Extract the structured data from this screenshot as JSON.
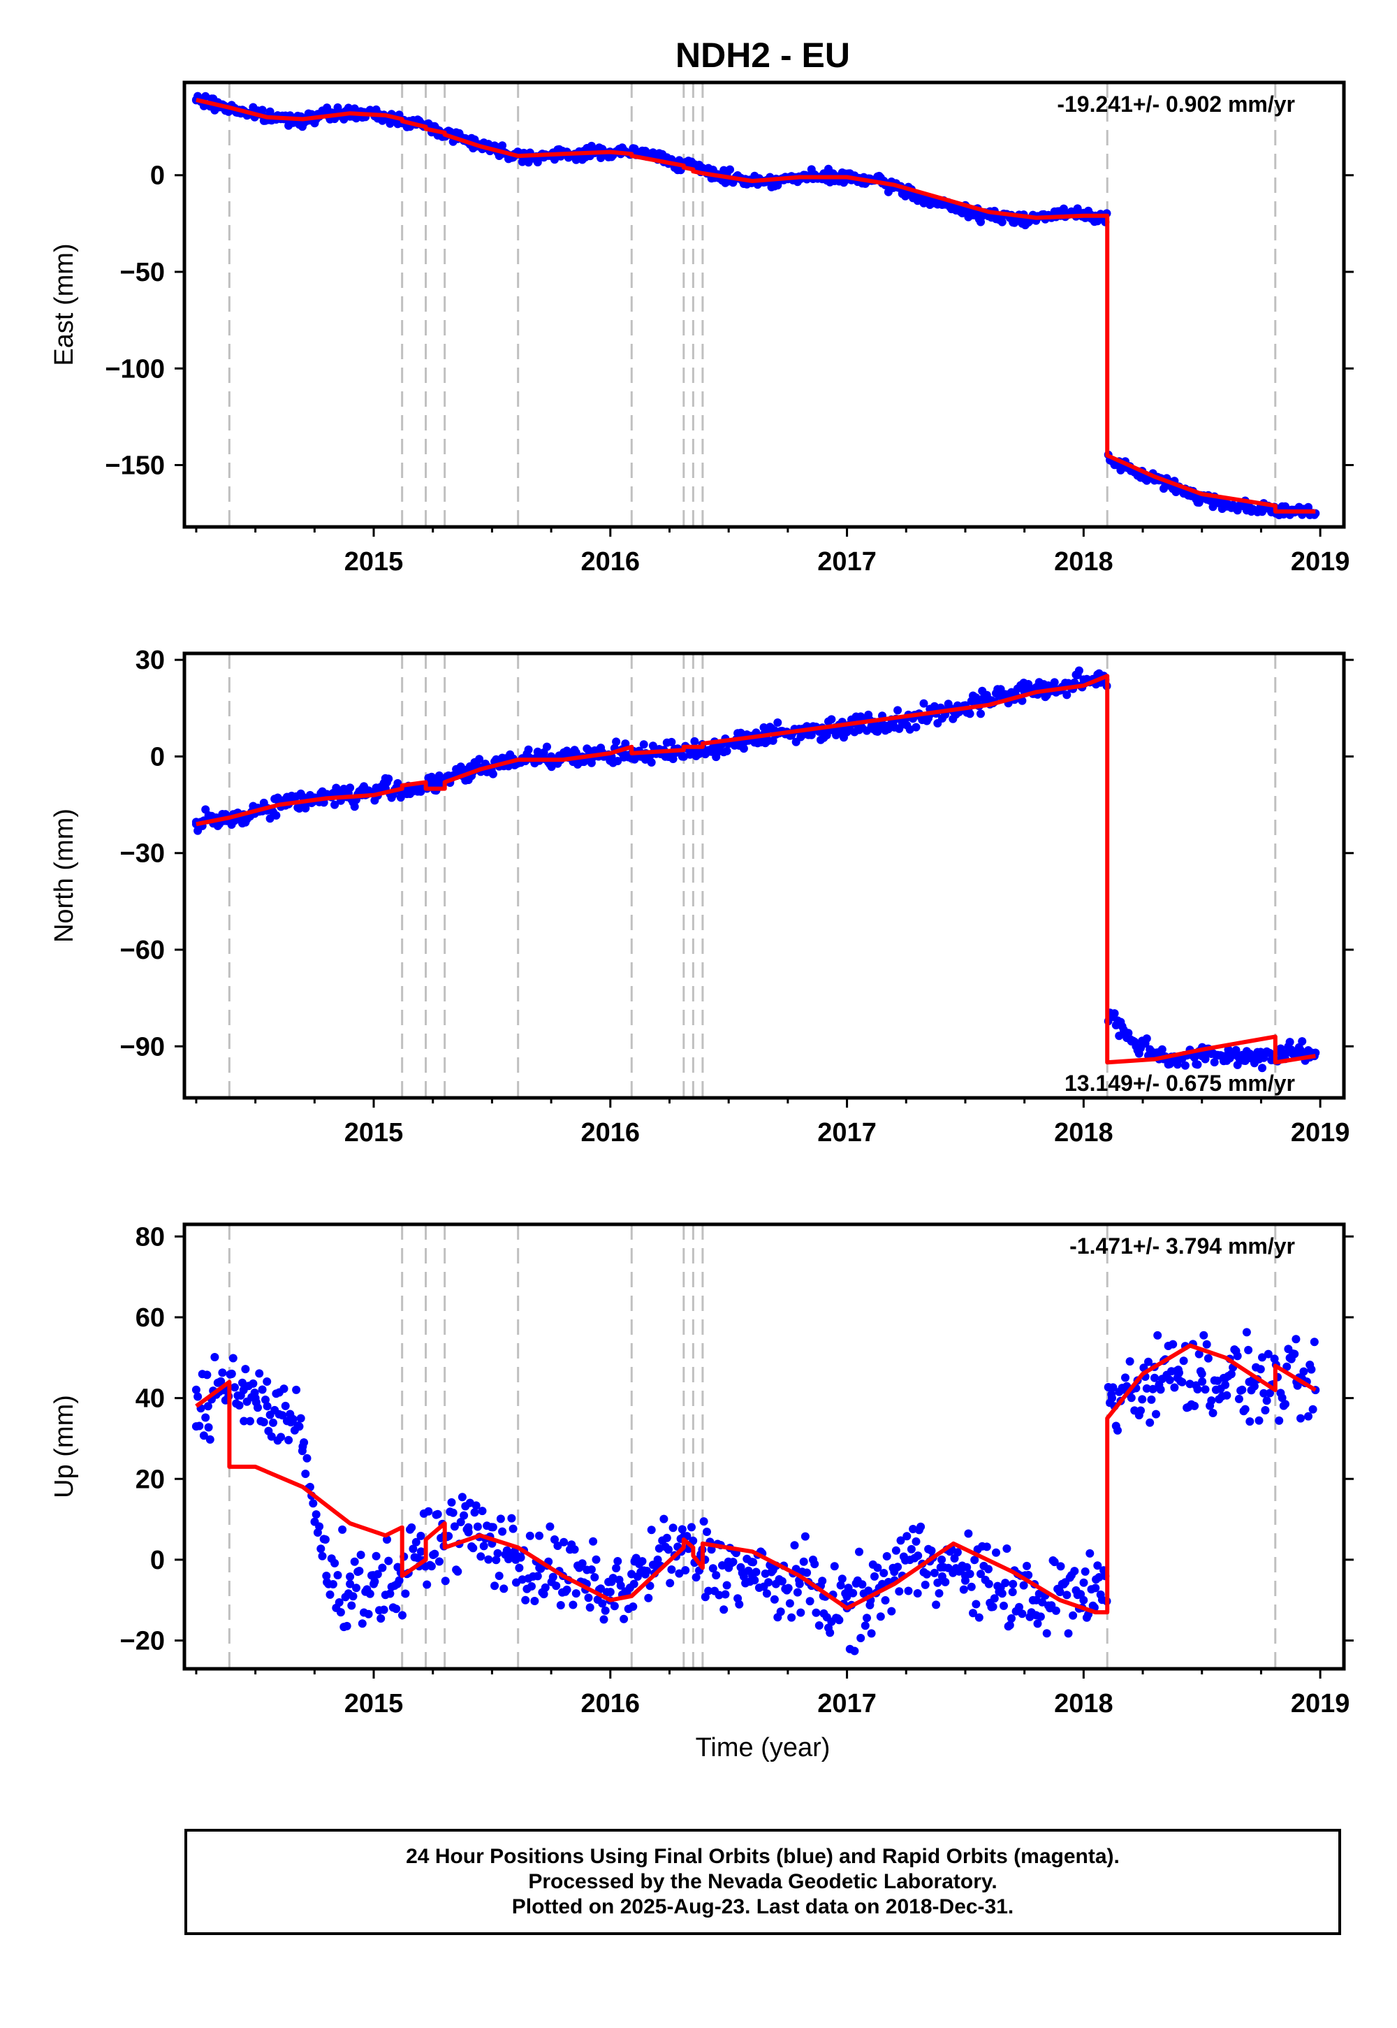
{
  "title": "NDH2 - EU",
  "xlabel": "Time (year)",
  "footer": {
    "line1": "24 Hour Positions Using Final Orbits (blue) and Rapid Orbits (magenta).",
    "line2": "Processed by the Nevada Geodetic Laboratory.",
    "line3": "Plotted on 2025-Aug-23. Last data on 2018-Dec-31."
  },
  "colors": {
    "data": "#0000ff",
    "model": "#ff0000",
    "event_lines": "#c0c0c0"
  },
  "chart_data": [
    {
      "type": "scatter",
      "ylabel": "East (mm)",
      "rate_label": "-19.241+/- 0.902 mm/yr",
      "xlim": [
        2014.2,
        2019.1
      ],
      "ylim": [
        -182,
        48
      ],
      "xticks": [
        2015,
        2016,
        2017,
        2018,
        2019
      ],
      "yticks": [
        0,
        -50,
        -100,
        -150
      ],
      "event_lines": [
        2014.39,
        2015.12,
        2015.22,
        2015.3,
        2015.61,
        2016.09,
        2016.31,
        2016.35,
        2016.39,
        2018.1,
        2018.81
      ],
      "series": [
        {
          "x": [
            2014.25,
            2014.35,
            2014.45,
            2014.55,
            2014.65,
            2014.75,
            2014.85,
            2014.95,
            2015.05,
            2015.15,
            2015.25,
            2015.35,
            2015.45,
            2015.55,
            2015.65,
            2015.75,
            2015.85,
            2015.95,
            2016.05,
            2016.15,
            2016.25,
            2016.35,
            2016.45,
            2016.55,
            2016.65,
            2016.75,
            2016.85,
            2016.95,
            2017.05,
            2017.15,
            2017.25,
            2017.35,
            2017.45,
            2017.55,
            2017.65,
            2017.75,
            2017.85,
            2017.95,
            2018.05,
            2018.12,
            2018.2,
            2018.3,
            2018.4,
            2018.5,
            2018.6,
            2018.7,
            2018.8,
            2018.9,
            2018.98
          ],
          "y": [
            39,
            36,
            33,
            30,
            29,
            30,
            32,
            32,
            30,
            28,
            24,
            20,
            16,
            12,
            10,
            10,
            11,
            12,
            12,
            11,
            8,
            4,
            0,
            -2,
            -3,
            -2,
            -1,
            -1,
            -2,
            -4,
            -8,
            -13,
            -17,
            -20,
            -22,
            -22,
            -21,
            -20,
            -21,
            -148,
            -153,
            -157,
            -162,
            -167,
            -170,
            -172,
            -173,
            -174,
            -175
          ]
        }
      ],
      "model": {
        "x": [
          2014.25,
          2014.39,
          2014.39,
          2014.55,
          2014.7,
          2014.9,
          2015.05,
          2015.12,
          2015.12,
          2015.22,
          2015.22,
          2015.3,
          2015.3,
          2015.45,
          2015.61,
          2015.61,
          2015.8,
          2016.0,
          2016.09,
          2016.09,
          2016.31,
          2016.31,
          2016.35,
          2016.35,
          2016.39,
          2016.39,
          2016.6,
          2016.8,
          2017.0,
          2017.2,
          2017.4,
          2017.6,
          2017.8,
          2018.0,
          2018.1,
          2018.1,
          2018.3,
          2018.5,
          2018.81,
          2018.81,
          2018.98
        ],
        "y": [
          39,
          35,
          35,
          30,
          29,
          32,
          31,
          29,
          28,
          25,
          24,
          22,
          21,
          15,
          10,
          10,
          11,
          12,
          11,
          10,
          5,
          4,
          3,
          2,
          1,
          1,
          -3,
          -1,
          -1,
          -5,
          -12,
          -19,
          -22,
          -21,
          -21,
          -145,
          -156,
          -165,
          -171,
          -174,
          -174
        ]
      }
    },
    {
      "type": "scatter",
      "ylabel": "North (mm)",
      "rate_label": "13.149+/- 0.675 mm/yr",
      "xlim": [
        2014.2,
        2019.1
      ],
      "ylim": [
        -106,
        32
      ],
      "xticks": [
        2015,
        2016,
        2017,
        2018,
        2019
      ],
      "yticks": [
        30,
        0,
        -30,
        -60,
        -90
      ],
      "event_lines": [
        2014.39,
        2015.12,
        2015.22,
        2015.3,
        2015.61,
        2016.09,
        2016.31,
        2016.35,
        2016.39,
        2018.1,
        2018.81
      ],
      "series": [
        {
          "x": [
            2014.25,
            2014.35,
            2014.45,
            2014.55,
            2014.65,
            2014.75,
            2014.85,
            2014.95,
            2015.05,
            2015.15,
            2015.25,
            2015.35,
            2015.45,
            2015.55,
            2015.65,
            2015.75,
            2015.85,
            2015.95,
            2016.05,
            2016.15,
            2016.25,
            2016.35,
            2016.45,
            2016.55,
            2016.65,
            2016.75,
            2016.85,
            2016.95,
            2017.05,
            2017.15,
            2017.25,
            2017.35,
            2017.45,
            2017.55,
            2017.65,
            2017.75,
            2017.85,
            2017.95,
            2018.05,
            2018.12,
            2018.2,
            2018.3,
            2018.4,
            2018.5,
            2018.6,
            2018.7,
            2018.8,
            2018.9,
            2018.98
          ],
          "y": [
            -21,
            -20,
            -18,
            -16,
            -14,
            -13,
            -12,
            -12,
            -10,
            -10,
            -9,
            -6,
            -4,
            -2,
            0,
            0,
            0,
            0,
            1,
            1,
            1,
            2,
            3,
            5,
            7,
            7,
            8,
            9,
            10,
            10,
            12,
            13,
            14,
            17,
            19,
            20,
            21,
            22,
            24,
            -80,
            -88,
            -92,
            -94,
            -93,
            -93,
            -93,
            -93,
            -92,
            -92
          ]
        }
      ],
      "model": {
        "x": [
          2014.25,
          2014.39,
          2014.39,
          2014.6,
          2014.8,
          2015.0,
          2015.12,
          2015.12,
          2015.22,
          2015.22,
          2015.3,
          2015.3,
          2015.45,
          2015.61,
          2015.61,
          2015.8,
          2016.0,
          2016.09,
          2016.09,
          2016.31,
          2016.31,
          2016.35,
          2016.35,
          2016.39,
          2016.39,
          2016.6,
          2016.8,
          2017.0,
          2017.2,
          2017.4,
          2017.6,
          2017.8,
          2018.0,
          2018.1,
          2018.1,
          2018.3,
          2018.5,
          2018.81,
          2018.81,
          2018.98
        ],
        "y": [
          -21,
          -19,
          -19,
          -15,
          -13,
          -12,
          -10,
          -9,
          -8,
          -10,
          -10,
          -8,
          -4,
          -1,
          -1,
          -1,
          1,
          3,
          1,
          2,
          3,
          3,
          3,
          3,
          4,
          6,
          8,
          10,
          12,
          14,
          16,
          20,
          22,
          25,
          -95,
          -94,
          -91,
          -87,
          -95,
          -93
        ]
      }
    },
    {
      "type": "scatter",
      "ylabel": "Up (mm)",
      "rate_label": "-1.471+/- 3.794 mm/yr",
      "xlim": [
        2014.2,
        2019.1
      ],
      "ylim": [
        -27,
        83
      ],
      "xticks": [
        2015,
        2016,
        2017,
        2018,
        2019
      ],
      "yticks": [
        80,
        60,
        40,
        20,
        0,
        -20
      ],
      "event_lines": [
        2014.39,
        2015.12,
        2015.22,
        2015.3,
        2015.61,
        2016.09,
        2016.31,
        2016.35,
        2016.39,
        2018.1,
        2018.81
      ],
      "series": [
        {
          "x": [
            2014.25,
            2014.3,
            2014.35,
            2014.4,
            2014.45,
            2014.5,
            2014.55,
            2014.6,
            2014.65,
            2014.7,
            2014.8,
            2014.9,
            2015.0,
            2015.1,
            2015.2,
            2015.3,
            2015.4,
            2015.5,
            2015.6,
            2015.7,
            2015.8,
            2015.9,
            2016.0,
            2016.1,
            2016.2,
            2016.3,
            2016.4,
            2016.5,
            2016.6,
            2016.7,
            2016.8,
            2016.9,
            2017.0,
            2017.1,
            2017.2,
            2017.3,
            2017.4,
            2017.5,
            2017.6,
            2017.7,
            2017.8,
            2017.9,
            2018.0,
            2018.05,
            2018.12,
            2018.2,
            2018.3,
            2018.4,
            2018.5,
            2018.6,
            2018.7,
            2018.8,
            2018.9,
            2018.98
          ],
          "y": [
            33,
            38,
            44,
            46,
            42,
            40,
            38,
            36,
            34,
            28,
            -4,
            -6,
            -6,
            -6,
            2,
            6,
            8,
            4,
            0,
            -2,
            -4,
            -6,
            -8,
            -6,
            0,
            2,
            0,
            -2,
            -4,
            -6,
            -6,
            -9,
            -12,
            -10,
            -3,
            1,
            0,
            -4,
            -6,
            -8,
            -10,
            -8,
            -10,
            -7,
            40,
            42,
            45,
            47,
            46,
            45,
            44,
            43,
            44,
            42
          ]
        }
      ],
      "model": {
        "x": [
          2014.25,
          2014.39,
          2014.39,
          2014.5,
          2014.7,
          2014.9,
          2015.05,
          2015.12,
          2015.12,
          2015.22,
          2015.22,
          2015.3,
          2015.3,
          2015.45,
          2015.61,
          2015.8,
          2016.0,
          2016.09,
          2016.2,
          2016.31,
          2016.31,
          2016.35,
          2016.35,
          2016.39,
          2016.39,
          2016.6,
          2016.8,
          2017.0,
          2017.2,
          2017.45,
          2017.7,
          2017.9,
          2018.05,
          2018.1,
          2018.1,
          2018.25,
          2018.45,
          2018.6,
          2018.81,
          2018.81,
          2018.98
        ],
        "y": [
          38,
          44,
          23,
          23,
          18,
          9,
          6,
          8,
          -4,
          0,
          5,
          9,
          3,
          6,
          3,
          -4,
          -10,
          -9,
          -3,
          3,
          5,
          3,
          1,
          -2,
          4,
          2,
          -4,
          -12,
          -6,
          4,
          -3,
          -10,
          -13,
          -13,
          35,
          46,
          53,
          50,
          42,
          48,
          42
        ]
      }
    }
  ]
}
